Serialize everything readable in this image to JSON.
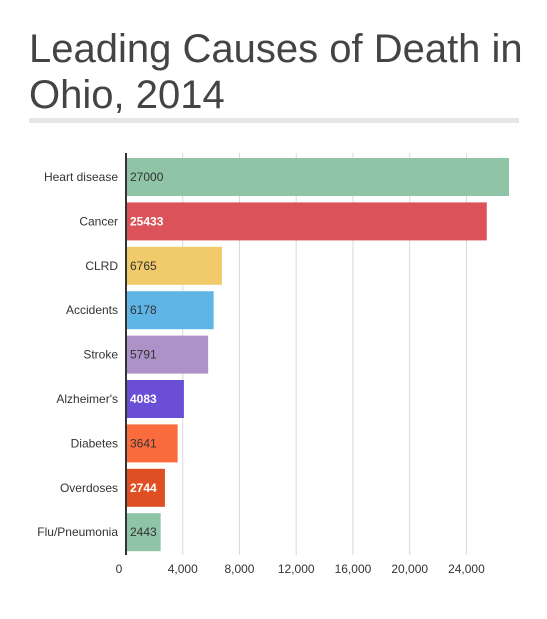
{
  "chart_data": {
    "type": "bar",
    "orientation": "horizontal",
    "title": "Leading Causes of Death in Ohio, 2014",
    "categories": [
      "Heart disease",
      "Cancer",
      "CLRD",
      "Accidents",
      "Stroke",
      "Alzheimer's",
      "Diabetes",
      "Overdoses",
      "Flu/Pneumonia"
    ],
    "values": [
      27000,
      25433,
      6765,
      6178,
      5791,
      4083,
      3641,
      2744,
      2443
    ],
    "value_labels": [
      "27000",
      "25433",
      "6765",
      "6178",
      "5791",
      "4083",
      "3641",
      "2744",
      "2443"
    ],
    "colors": [
      "#8fc4a6",
      "#dc5259",
      "#f1ca6a",
      "#5fb6e6",
      "#ad92c8",
      "#6a4fd6",
      "#fb6b3e",
      "#e04f24",
      "#8fc4a6"
    ],
    "label_colors": [
      "#333333",
      "#ffffff",
      "#333333",
      "#333333",
      "#333333",
      "#ffffff",
      "#333333",
      "#ffffff",
      "#333333"
    ],
    "label_bold": [
      false,
      true,
      false,
      false,
      false,
      true,
      false,
      true,
      false
    ],
    "xlim": [
      0,
      27000
    ],
    "xticks": [
      0,
      4000,
      8000,
      12000,
      16000,
      20000,
      24000
    ],
    "xtick_labels": [
      "0",
      "4,000",
      "8,000",
      "12,000",
      "16,000",
      "20,000",
      "24,000"
    ],
    "grid": true
  }
}
